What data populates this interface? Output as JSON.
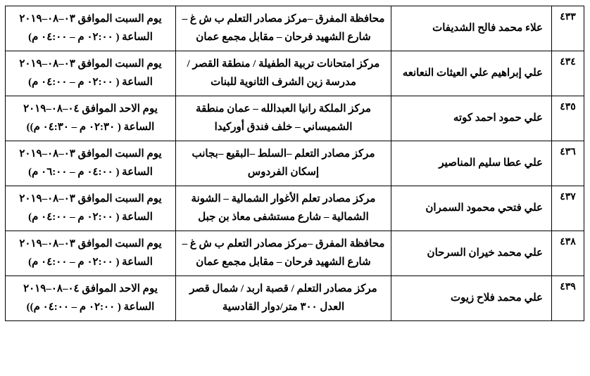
{
  "rows": [
    {
      "num": "٤٣٣",
      "name": "علاء محمد فالح الشديفات",
      "loc": "محافظة المفرق –مركز مصادر التعلم ب ش غ – شارع الشهيد فرحان – مقابل مجمع عمان",
      "time": "يوم السبت الموافق ٠٣–٠٨–٢٠١٩ الساعة ( ٠٢:٠٠ م – ٠٤:٠٠ م)"
    },
    {
      "num": "٤٣٤",
      "name": "علي إبراهيم علي العيثات النعانعه",
      "loc": "مركز امتحانات تربية الطفيلة / منطقة القصر / مدرسة زين  الشرف الثانوية للبنات",
      "time": "يوم السبت الموافق ٠٣–٠٨–٢٠١٩ الساعة ( ٠٢:٠٠ م – ٠٤:٠٠ م)"
    },
    {
      "num": "٤٣٥",
      "name": "علي حمود احمد كوته",
      "loc": "مركز الملكة رانيا العبدالله – عمان منطقة الشميساني – خلف فندق أوركيدا",
      "time": "يوم الاحد الموافق ٠٤–٠٨–٢٠١٩ الساعة ( ٠٢:٣٠ م – ٠٤:٣٠ م))"
    },
    {
      "num": "٤٣٦",
      "name": "علي عطا سليم المناصير",
      "loc": "مركز مصادر التعلم –السلط –البقيع –بجانب إسكان الفردوس",
      "time": "يوم السبت الموافق ٠٣–٠٨–٢٠١٩ الساعة ( ٠٤:٠٠ م – ٠٦:٠٠ م)"
    },
    {
      "num": "٤٣٧",
      "name": "علي فتحي محمود السمران",
      "loc": "مركز مصادر تعلم الأغوار الشمالية  – الشونة الشمالية – شارع مستشفى معاذ بن جبل",
      "time": "يوم السبت الموافق ٠٣–٠٨–٢٠١٩ الساعة ( ٠٢:٠٠ م – ٠٤:٠٠ م)"
    },
    {
      "num": "٤٣٨",
      "name": "علي محمد خيران السرحان",
      "loc": "محافظة المفرق –مركز مصادر التعلم ب ش غ – شارع الشهيد فرحان  – مقابل مجمع عمان",
      "time": "يوم السبت الموافق ٠٣–٠٨–٢٠١٩ الساعة ( ٠٢:٠٠ م – ٠٤:٠٠ م)"
    },
    {
      "num": "٤٣٩",
      "name": "علي محمد فلاح زيوت",
      "loc": "مركز مصادر التعلم / قصبة  اربد /  شمال قصر العدل ٣٠٠ متر/دوار القادسية",
      "time": "يوم الاحد الموافق ٠٤–٠٨–٢٠١٩ الساعة ( ٠٢:٠٠ م – ٠٤:٠٠ م))"
    }
  ]
}
